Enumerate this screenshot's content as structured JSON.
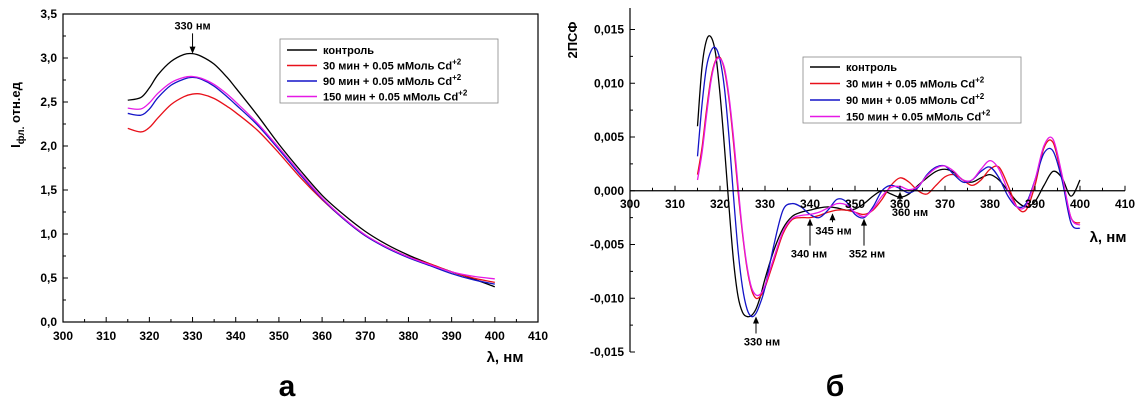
{
  "figure": {
    "panel_a_label": "а",
    "panel_b_label": "б"
  },
  "colors": {
    "control": "#000000",
    "series_30": "#e8101a",
    "series_90": "#1414c8",
    "series_150": "#e619e6"
  },
  "chart_data": [
    {
      "type": "line",
      "panel": "а",
      "ylabel_main": "I",
      "ylabel_sub": "фл.",
      "ylabel_rest": " отн.ед",
      "xlabel": "λ, нм",
      "xlim": [
        300,
        410
      ],
      "ylim": [
        0.0,
        3.5
      ],
      "xticks": [
        300,
        310,
        320,
        330,
        340,
        350,
        360,
        370,
        380,
        390,
        400,
        410
      ],
      "xtick_labels": [
        "300",
        "310",
        "320",
        "330",
        "340",
        "350",
        "360",
        "370",
        "380",
        "390",
        "400",
        "410"
      ],
      "yticks": [
        0.0,
        0.5,
        1.0,
        1.5,
        2.0,
        2.5,
        3.0,
        3.5
      ],
      "ytick_labels": [
        "0,0",
        "0,5",
        "1,0",
        "1,5",
        "2,0",
        "2,5",
        "3,0",
        "3,5"
      ],
      "grid": false,
      "legend_position": "top-right",
      "annotations": [
        {
          "text": "330 нм",
          "x": 330,
          "y": 3.05,
          "arrow_from_y": 3.28
        }
      ],
      "series": [
        {
          "name": "контроль",
          "label_main": "контроль",
          "label_sup": "",
          "color_key": "control",
          "x": [
            315,
            318,
            320,
            322,
            325,
            328,
            330,
            332,
            335,
            338,
            340,
            345,
            350,
            355,
            360,
            365,
            370,
            375,
            380,
            385,
            390,
            395,
            400
          ],
          "y": [
            2.52,
            2.55,
            2.66,
            2.81,
            2.96,
            3.04,
            3.05,
            3.02,
            2.93,
            2.78,
            2.66,
            2.35,
            2.02,
            1.72,
            1.44,
            1.22,
            1.03,
            0.88,
            0.76,
            0.66,
            0.57,
            0.49,
            0.4
          ]
        },
        {
          "name": "30 мин + 0.05 мМоль Cd+2",
          "label_main": "30 мин + 0.05 мМоль Cd",
          "label_sup": "+2",
          "color_key": "series_30",
          "x": [
            315,
            318,
            320,
            322,
            325,
            328,
            330,
            332,
            335,
            338,
            340,
            345,
            350,
            355,
            360,
            365,
            370,
            375,
            380,
            385,
            390,
            395,
            400
          ],
          "y": [
            2.2,
            2.16,
            2.21,
            2.32,
            2.47,
            2.56,
            2.59,
            2.59,
            2.54,
            2.45,
            2.38,
            2.18,
            1.92,
            1.64,
            1.39,
            1.17,
            0.98,
            0.85,
            0.74,
            0.66,
            0.57,
            0.5,
            0.45
          ]
        },
        {
          "name": "90 мин + 0.05 мМоль Cd+2",
          "label_main": "90 мин + 0.05 мМоль Cd",
          "label_sup": "+2",
          "color_key": "series_90",
          "x": [
            315,
            318,
            320,
            322,
            325,
            328,
            330,
            332,
            335,
            338,
            340,
            345,
            350,
            355,
            360,
            365,
            370,
            375,
            380,
            385,
            390,
            395,
            400
          ],
          "y": [
            2.37,
            2.35,
            2.42,
            2.55,
            2.69,
            2.76,
            2.78,
            2.76,
            2.68,
            2.56,
            2.47,
            2.24,
            1.96,
            1.67,
            1.4,
            1.17,
            0.98,
            0.84,
            0.73,
            0.64,
            0.55,
            0.48,
            0.43
          ]
        },
        {
          "name": "150 мин + 0.05 мМоль Cd+2",
          "label_main": "150 мин + 0.05 мМоль Cd",
          "label_sup": "+2",
          "color_key": "series_150",
          "x": [
            315,
            318,
            320,
            322,
            325,
            328,
            330,
            332,
            335,
            338,
            340,
            345,
            350,
            355,
            360,
            365,
            370,
            375,
            380,
            385,
            390,
            395,
            400
          ],
          "y": [
            2.43,
            2.42,
            2.49,
            2.6,
            2.72,
            2.78,
            2.79,
            2.77,
            2.7,
            2.59,
            2.5,
            2.26,
            1.98,
            1.69,
            1.41,
            1.18,
            0.99,
            0.85,
            0.74,
            0.65,
            0.57,
            0.52,
            0.49
          ]
        }
      ]
    },
    {
      "type": "line",
      "panel": "б",
      "ylabel": "2ПСФ",
      "xlabel": "λ, нм",
      "xlim": [
        300,
        410
      ],
      "ylim": [
        -0.015,
        0.017
      ],
      "x_axis_at_y": 0,
      "xticks": [
        300,
        310,
        320,
        330,
        340,
        350,
        360,
        370,
        380,
        390,
        400,
        410
      ],
      "xtick_labels": [
        "300",
        "310",
        "320",
        "330",
        "340",
        "350",
        "360",
        "370",
        "380",
        "390",
        "400",
        "410"
      ],
      "yticks": [
        -0.015,
        -0.01,
        -0.005,
        0.0,
        0.005,
        0.01,
        0.015
      ],
      "ytick_labels": [
        "-0,015",
        "-0,010",
        "-0,005",
        "0,000",
        "0,005",
        "0,010",
        "0,015"
      ],
      "grid": false,
      "legend_position": "top-right",
      "annotations": [
        {
          "text": "330 нм",
          "x": 328,
          "y": -0.0116,
          "direction": "up"
        },
        {
          "text": "340 нм",
          "x": 340,
          "y": -0.0025,
          "direction": "up"
        },
        {
          "text": "345 нм",
          "x": 345,
          "y": -0.002,
          "direction": "up"
        },
        {
          "text": "352 нм",
          "x": 352,
          "y": -0.0025,
          "direction": "up"
        },
        {
          "text": "360 нм",
          "x": 360,
          "y": 0.0,
          "direction": "up"
        }
      ],
      "series": [
        {
          "name": "контроль",
          "label_main": "контроль",
          "label_sup": "",
          "color_key": "control",
          "x": [
            315,
            316,
            317,
            318,
            319,
            320,
            321,
            322,
            323,
            324,
            325,
            326,
            327,
            328,
            329,
            330,
            332,
            334,
            336,
            338,
            340,
            342,
            344,
            346,
            348,
            350,
            352,
            354,
            356,
            358,
            360,
            362,
            364,
            366,
            368,
            370,
            372,
            374,
            376,
            378,
            380,
            382,
            384,
            386,
            388,
            390,
            392,
            394,
            396,
            398,
            400
          ],
          "y": [
            0.006,
            0.0115,
            0.014,
            0.0143,
            0.0128,
            0.009,
            0.004,
            -0.0015,
            -0.0065,
            -0.0098,
            -0.0113,
            -0.0117,
            -0.0116,
            -0.011,
            -0.0098,
            -0.0082,
            -0.0055,
            -0.0035,
            -0.0024,
            -0.002,
            -0.0018,
            -0.0016,
            -0.0015,
            -0.0016,
            -0.0018,
            -0.0017,
            -0.0012,
            -0.0005,
            0.0,
            -0.0003,
            -0.0006,
            -0.0003,
            0.0005,
            0.0012,
            0.0018,
            0.002,
            0.0017,
            0.001,
            0.0008,
            0.0012,
            0.0015,
            0.001,
            0.0,
            -0.001,
            -0.0015,
            -0.001,
            0.0005,
            0.0018,
            0.0012,
            -0.0005,
            0.001
          ]
        },
        {
          "name": "30 мин + 0.05 мМоль Cd+2",
          "label_main": "30 мин + 0.05 мМоль Cd",
          "label_sup": "+2",
          "color_key": "series_30",
          "x": [
            315,
            316,
            317,
            318,
            319,
            320,
            321,
            322,
            323,
            324,
            325,
            326,
            327,
            328,
            329,
            330,
            332,
            334,
            336,
            338,
            340,
            342,
            344,
            346,
            348,
            350,
            352,
            354,
            356,
            358,
            360,
            362,
            364,
            366,
            368,
            370,
            372,
            374,
            376,
            378,
            380,
            382,
            384,
            386,
            388,
            390,
            392,
            394,
            396,
            398,
            400
          ],
          "y": [
            0.0015,
            0.004,
            0.0075,
            0.0105,
            0.0121,
            0.0124,
            0.0112,
            0.0085,
            0.0045,
            0.0,
            -0.004,
            -0.0072,
            -0.0092,
            -0.01,
            -0.0098,
            -0.009,
            -0.0065,
            -0.004,
            -0.0027,
            -0.0025,
            -0.0025,
            -0.0023,
            -0.002,
            -0.0018,
            -0.0018,
            -0.002,
            -0.0022,
            -0.0018,
            -0.0008,
            0.0005,
            0.0012,
            0.0008,
            0.0,
            -0.0003,
            0.0005,
            0.0013,
            0.0015,
            0.001,
            0.0005,
            0.001,
            0.002,
            0.0022,
            0.0005,
            -0.0015,
            -0.0018,
            0.0005,
            0.004,
            0.0045,
            0.0012,
            -0.0025,
            -0.003
          ]
        },
        {
          "name": "90 мин + 0.05 мМоль Cd+2",
          "label_main": "90 мин + 0.05 мМоль Cd",
          "label_sup": "+2",
          "color_key": "series_90",
          "x": [
            315,
            316,
            317,
            318,
            319,
            320,
            321,
            322,
            323,
            324,
            325,
            326,
            327,
            328,
            329,
            330,
            332,
            334,
            336,
            338,
            340,
            342,
            344,
            346,
            348,
            350,
            352,
            354,
            356,
            358,
            360,
            362,
            364,
            366,
            368,
            370,
            372,
            374,
            376,
            378,
            380,
            382,
            384,
            386,
            388,
            390,
            392,
            394,
            396,
            398,
            400
          ],
          "y": [
            0.0032,
            0.008,
            0.0115,
            0.013,
            0.0133,
            0.0122,
            0.0095,
            0.005,
            -0.0005,
            -0.0055,
            -0.009,
            -0.011,
            -0.0117,
            -0.0114,
            -0.0104,
            -0.009,
            -0.005,
            -0.0018,
            -0.0012,
            -0.0015,
            -0.0022,
            -0.0025,
            -0.0018,
            -0.0008,
            -0.001,
            -0.0022,
            -0.0025,
            -0.0015,
            0.0,
            0.0005,
            0.0002,
            -0.0002,
            0.0003,
            0.0015,
            0.0022,
            0.0023,
            0.0015,
            0.0008,
            0.001,
            0.0018,
            0.0022,
            0.0012,
            -0.0005,
            -0.0015,
            -0.0012,
            0.001,
            0.0035,
            0.0037,
            0.001,
            -0.003,
            -0.0035
          ]
        },
        {
          "name": "150 мин + 0.05 мМоль Cd+2",
          "label_main": "150 мин + 0.05 мМоль Cd",
          "label_sup": "+2",
          "color_key": "series_150",
          "x": [
            315,
            316,
            317,
            318,
            319,
            320,
            321,
            322,
            323,
            324,
            325,
            326,
            327,
            328,
            329,
            330,
            332,
            334,
            336,
            338,
            340,
            342,
            344,
            346,
            348,
            350,
            352,
            354,
            356,
            358,
            360,
            362,
            364,
            366,
            368,
            370,
            372,
            374,
            376,
            378,
            380,
            382,
            384,
            386,
            388,
            390,
            392,
            394,
            396,
            398,
            400
          ],
          "y": [
            0.001,
            0.0035,
            0.007,
            0.0102,
            0.012,
            0.0123,
            0.0114,
            0.0088,
            0.005,
            0.0005,
            -0.0038,
            -0.007,
            -0.009,
            -0.0097,
            -0.0096,
            -0.0088,
            -0.0062,
            -0.0038,
            -0.0026,
            -0.0023,
            -0.0022,
            -0.002,
            -0.0016,
            -0.0012,
            -0.0013,
            -0.002,
            -0.0024,
            -0.0017,
            -0.0005,
            0.0003,
            0.0004,
            0.0001,
            0.0004,
            0.0014,
            0.0021,
            0.0023,
            0.0018,
            0.001,
            0.001,
            0.002,
            0.0028,
            0.002,
            0.0,
            -0.0015,
            -0.0014,
            0.001,
            0.0042,
            0.0048,
            0.0015,
            -0.0025,
            -0.0032
          ]
        }
      ]
    }
  ]
}
